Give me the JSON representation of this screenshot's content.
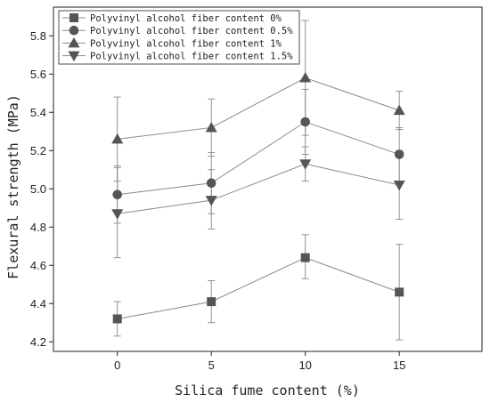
{
  "chart_data": {
    "type": "line",
    "xlabel": "Silica fume content (%)",
    "ylabel": "Flexural strength (MPa)",
    "x": [
      0,
      5,
      10,
      15
    ],
    "xticks": [
      0,
      5,
      10,
      15
    ],
    "xlim": [
      -3.4,
      19.4
    ],
    "ylim": [
      4.15,
      5.95
    ],
    "yticks": [
      4.2,
      4.4,
      4.6,
      4.8,
      5.0,
      5.2,
      5.4,
      5.6,
      5.8
    ],
    "legend_position": "top-left",
    "grid": false,
    "series": [
      {
        "name": "Polyvinyl alcohol fiber content 0%",
        "marker": "square",
        "values": [
          4.32,
          4.41,
          4.64,
          4.46
        ],
        "err_low": [
          4.23,
          4.3,
          4.53,
          4.21
        ],
        "err_high": [
          4.41,
          4.52,
          4.76,
          4.71
        ]
      },
      {
        "name": "Polyvinyl alcohol fiber content 0.5%",
        "marker": "circle",
        "values": [
          4.97,
          5.03,
          5.35,
          5.18
        ],
        "err_low": [
          4.82,
          4.87,
          5.18,
          5.04
        ],
        "err_high": [
          5.12,
          5.19,
          5.52,
          5.32
        ]
      },
      {
        "name": "Polyvinyl alcohol fiber content 1%",
        "marker": "triangle-up",
        "values": [
          5.26,
          5.32,
          5.58,
          5.41
        ],
        "err_low": [
          5.04,
          5.17,
          5.28,
          5.31
        ],
        "err_high": [
          5.48,
          5.47,
          5.88,
          5.51
        ]
      },
      {
        "name": "Polyvinyl alcohol fiber content 1.5%",
        "marker": "triangle-down",
        "values": [
          4.87,
          4.94,
          5.13,
          5.02
        ],
        "err_low": [
          4.64,
          4.79,
          5.04,
          4.84
        ],
        "err_high": [
          5.11,
          5.1,
          5.22,
          5.2
        ]
      }
    ]
  }
}
